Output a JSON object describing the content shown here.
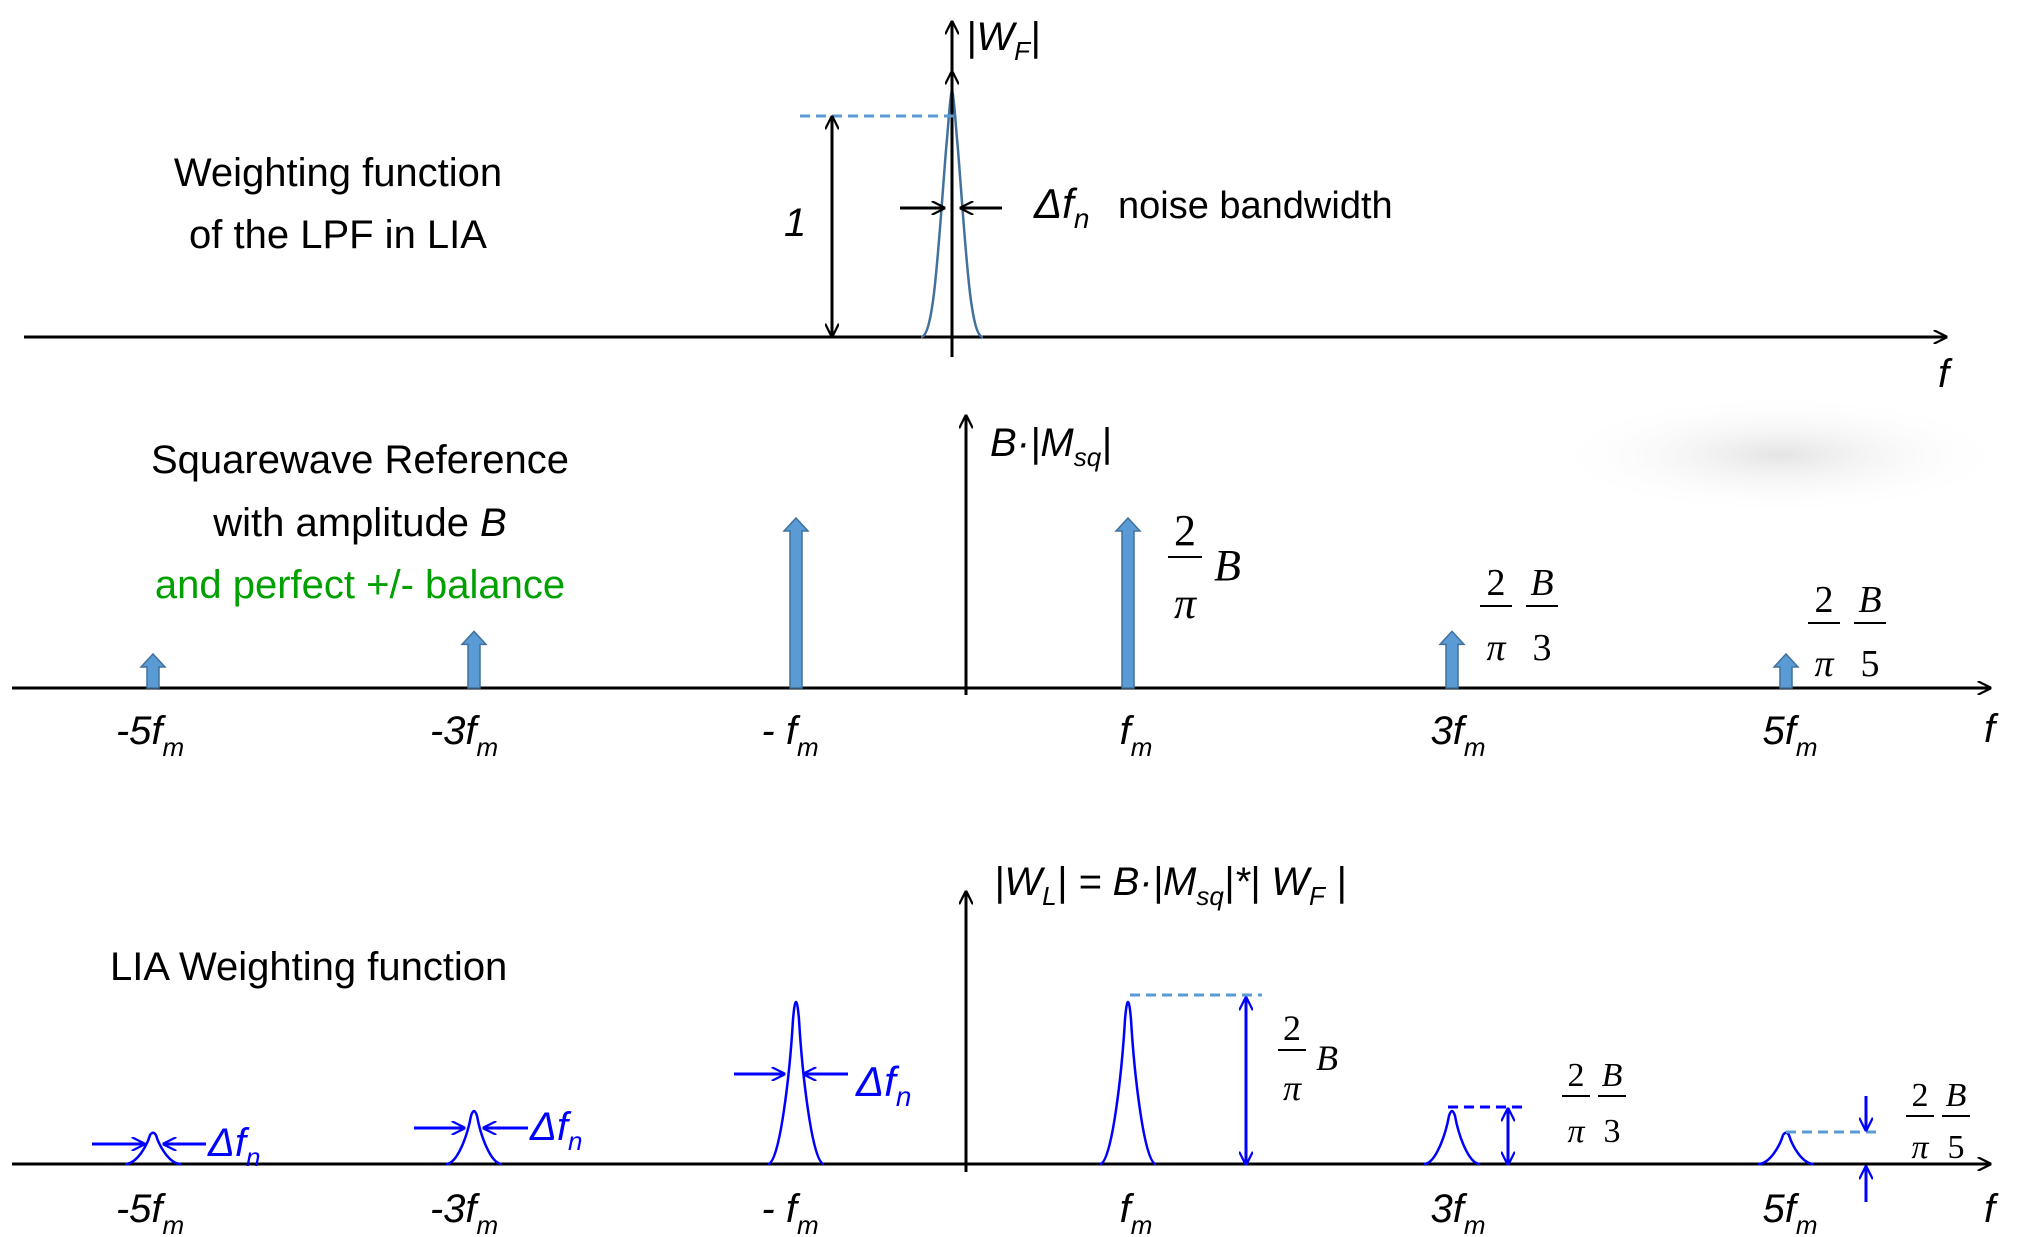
{
  "panel1": {
    "caption_line1": "Weighting function",
    "caption_line2": "of the LPF in LIA",
    "axis_y_label": {
      "main": "|W",
      "sub": "F",
      "end": "|"
    },
    "axis_x_label": "f",
    "height_label": "1",
    "bandwidth_symbol": {
      "main": "Δf",
      "sub": "n"
    },
    "bandwidth_text": "noise bandwidth"
  },
  "panel2": {
    "caption_line1": "Squarewave Reference",
    "caption_line2_text": "with amplitude ",
    "caption_line2_var": "B",
    "caption_line3": "and perfect +/- balance",
    "axis_y_label": {
      "pre": "B·|M",
      "sub": "sq",
      "end": "|"
    },
    "axis_x_label": "f",
    "ticks": [
      {
        "main": "-5f",
        "sub": "m"
      },
      {
        "main": "-3f",
        "sub": "m"
      },
      {
        "main": "- f",
        "sub": "m"
      },
      {
        "main": "f",
        "sub": "m"
      },
      {
        "main": "3f",
        "sub": "m"
      },
      {
        "main": "5f",
        "sub": "m"
      }
    ],
    "annot_f1": {
      "num": "2",
      "den": "π",
      "var": "B"
    },
    "annot_f3": {
      "num1": "2",
      "den1": "π",
      "num2": "B",
      "den2": "3"
    },
    "annot_f5": {
      "num1": "2",
      "den1": "π",
      "num2": "B",
      "den2": "5"
    }
  },
  "panel3": {
    "caption": "LIA Weighting function",
    "axis_y_label": {
      "a": "|W",
      "a_sub": "L",
      "b": "| = B·|M",
      "b_sub": "sq",
      "c": "|*| W",
      "c_sub": "F",
      "d": " |"
    },
    "axis_x_label": "f",
    "ticks": [
      {
        "main": "-5f",
        "sub": "m"
      },
      {
        "main": "-3f",
        "sub": "m"
      },
      {
        "main": "- f",
        "sub": "m"
      },
      {
        "main": "f",
        "sub": "m"
      },
      {
        "main": "3f",
        "sub": "m"
      },
      {
        "main": "5f",
        "sub": "m"
      }
    ],
    "bandwidth_symbol": {
      "main": "Δf",
      "sub": "n"
    },
    "annot_f1": {
      "num": "2",
      "den": "π",
      "var": "B"
    },
    "annot_f3": {
      "num1": "2",
      "den1": "π",
      "num2": "B",
      "den2": "3"
    },
    "annot_f5": {
      "num1": "2",
      "den1": "π",
      "num2": "B",
      "den2": "5"
    }
  },
  "chart_data": {
    "type": "diagram",
    "reference_harmonics": [
      {
        "harmonic": -5,
        "relative_amplitude": 0.2
      },
      {
        "harmonic": -3,
        "relative_amplitude": 0.3333
      },
      {
        "harmonic": -1,
        "relative_amplitude": 1.0
      },
      {
        "harmonic": 1,
        "relative_amplitude": 1.0
      },
      {
        "harmonic": 3,
        "relative_amplitude": 0.3333
      },
      {
        "harmonic": 5,
        "relative_amplitude": 0.2
      }
    ]
  },
  "colors": {
    "axis": "#000000",
    "stem_fill": "#5b9bd5",
    "stem_stroke": "#41719c",
    "lpf_curve": "#41719c",
    "dashed": "#5b9bd5",
    "blue_lines": "#0000ff",
    "green_text": "#00a000"
  }
}
